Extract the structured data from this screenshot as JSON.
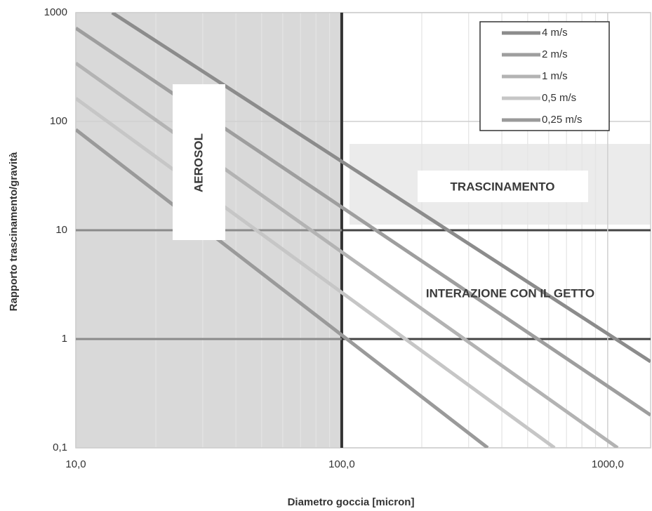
{
  "chart_data": {
    "type": "line",
    "xlabel": "Diametro goccia [micron]",
    "ylabel": "Rapporto trascinamento/gravità",
    "xscale": "log",
    "yscale": "log",
    "xlim": [
      10,
      1450
    ],
    "ylim": [
      0.1,
      1000
    ],
    "xticks": [
      {
        "value": 10,
        "label": "10,0"
      },
      {
        "value": 100,
        "label": "100,0"
      },
      {
        "value": 1000,
        "label": "1000,0"
      }
    ],
    "yticks": [
      {
        "value": 0.1,
        "label": "0,1"
      },
      1,
      10,
      100,
      1000
    ],
    "grid": true,
    "minor_grid": true,
    "legend": "upper right",
    "series": [
      {
        "name": "4 m/s",
        "color": "#8c8c8c",
        "x": [
          13.7,
          1450
        ],
        "values": [
          1000,
          0.62
        ]
      },
      {
        "name": "2 m/s",
        "color": "#9e9e9e",
        "x": [
          10,
          1450
        ],
        "values": [
          720,
          0.2
        ]
      },
      {
        "name": "1 m/s",
        "color": "#b3b3b3",
        "x": [
          10,
          1090
        ],
        "values": [
          343,
          0.1
        ]
      },
      {
        "name": "0,5 m/s",
        "color": "#c6c6c6",
        "x": [
          10,
          631
        ],
        "values": [
          163,
          0.1
        ]
      },
      {
        "name": "0,25 m/s",
        "color": "#9a9a9a",
        "x": [
          10,
          354
        ],
        "values": [
          84,
          0.1
        ]
      }
    ],
    "annotations": [
      "AEROSOL",
      "TRASCINAMENTO",
      "INTERAZIONE CON IL GETTO"
    ]
  }
}
